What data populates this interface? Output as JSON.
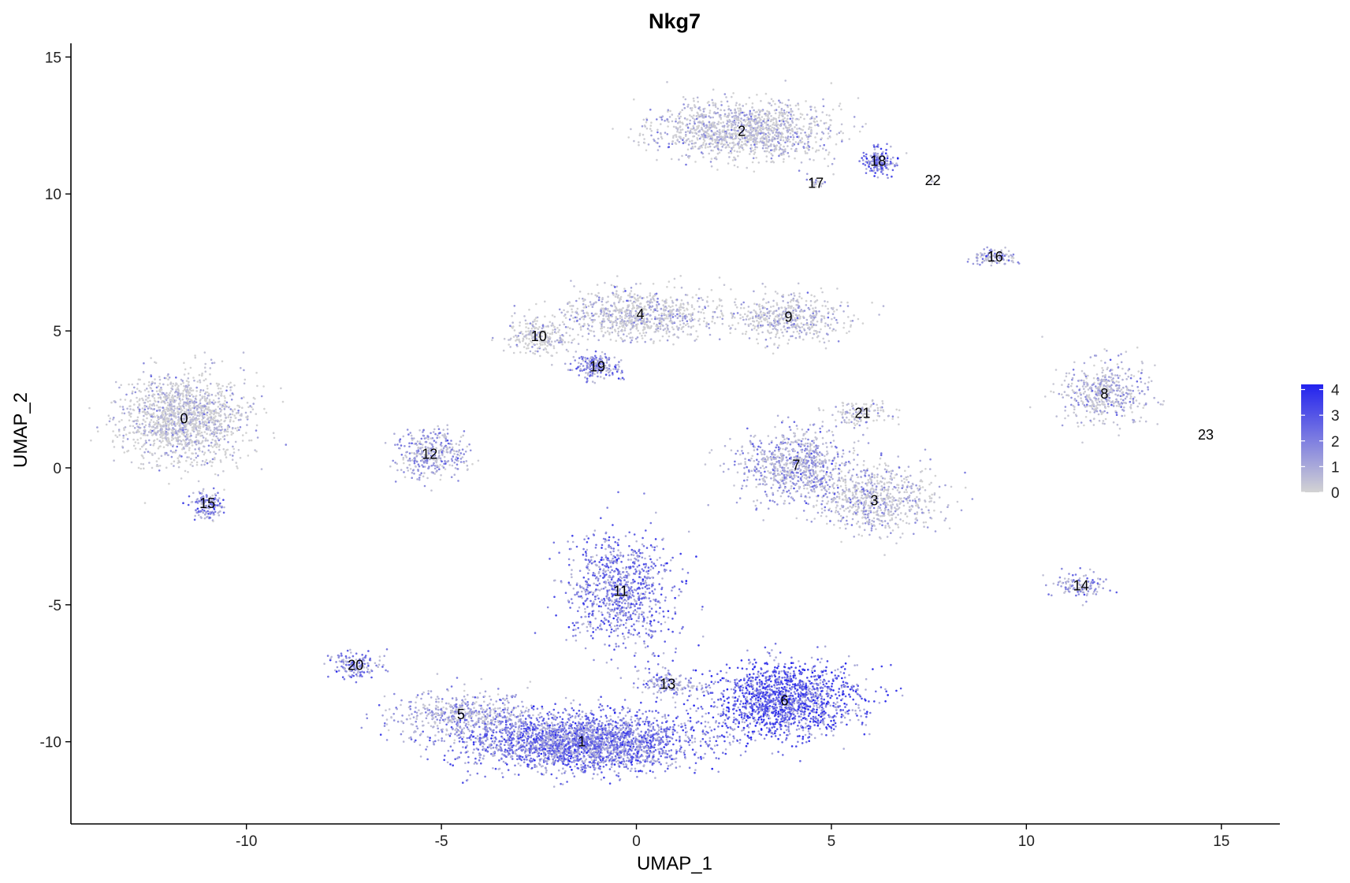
{
  "chart_data": {
    "type": "scatter",
    "title": "Nkg7",
    "xlabel": "UMAP_1",
    "ylabel": "UMAP_2",
    "xlim": [
      -14.5,
      16.5
    ],
    "ylim": [
      -13,
      15.5
    ],
    "xticks": [
      -10,
      -5,
      0,
      5,
      10,
      15
    ],
    "yticks": [
      -10,
      -5,
      0,
      5,
      10,
      15
    ],
    "grid": false,
    "legend": {
      "placement": "right",
      "min": 0,
      "max": 4.2,
      "ticks": [
        0,
        1,
        2,
        3,
        4
      ],
      "low_color": "#d3d3d3",
      "high_color": "#2222ee"
    },
    "clusters": [
      {
        "label": "0",
        "x": -11.6,
        "y": 1.8,
        "sx": 1.05,
        "sy": 1.05,
        "n": 1500,
        "expr": 0.3
      },
      {
        "label": "1",
        "x": -1.4,
        "y": -10.0,
        "sx": 2.0,
        "sy": 0.7,
        "n": 2600,
        "expr": 2.4
      },
      {
        "label": "2",
        "x": 2.7,
        "y": 12.3,
        "sx": 1.5,
        "sy": 0.7,
        "n": 1300,
        "expr": 0.5
      },
      {
        "label": "3",
        "x": 6.1,
        "y": -1.2,
        "sx": 1.1,
        "sy": 0.8,
        "n": 700,
        "expr": 0.6
      },
      {
        "label": "4",
        "x": 0.1,
        "y": 5.6,
        "sx": 1.3,
        "sy": 0.6,
        "n": 800,
        "expr": 0.4
      },
      {
        "label": "5",
        "x": -4.5,
        "y": -9.0,
        "sx": 1.2,
        "sy": 0.55,
        "n": 500,
        "expr": 1.3
      },
      {
        "label": "6",
        "x": 3.8,
        "y": -8.5,
        "sx": 1.2,
        "sy": 0.9,
        "n": 1500,
        "expr": 3.0
      },
      {
        "label": "7",
        "x": 4.1,
        "y": 0.1,
        "sx": 1.0,
        "sy": 0.8,
        "n": 800,
        "expr": 1.2
      },
      {
        "label": "8",
        "x": 12.0,
        "y": 2.7,
        "sx": 0.75,
        "sy": 0.75,
        "n": 500,
        "expr": 0.8
      },
      {
        "label": "9",
        "x": 3.9,
        "y": 5.5,
        "sx": 1.0,
        "sy": 0.55,
        "n": 500,
        "expr": 0.5
      },
      {
        "label": "10",
        "x": -2.5,
        "y": 4.8,
        "sx": 0.55,
        "sy": 0.4,
        "n": 250,
        "expr": 0.3
      },
      {
        "label": "11",
        "x": -0.4,
        "y": -4.5,
        "sx": 0.9,
        "sy": 1.3,
        "n": 900,
        "expr": 2.3
      },
      {
        "label": "12",
        "x": -5.3,
        "y": 0.5,
        "sx": 0.6,
        "sy": 0.6,
        "n": 350,
        "expr": 1.2
      },
      {
        "label": "13",
        "x": 0.8,
        "y": -7.9,
        "sx": 0.5,
        "sy": 0.3,
        "n": 150,
        "expr": 1.4
      },
      {
        "label": "14",
        "x": 11.4,
        "y": -4.3,
        "sx": 0.5,
        "sy": 0.3,
        "n": 120,
        "expr": 1.5
      },
      {
        "label": "15",
        "x": -11.0,
        "y": -1.3,
        "sx": 0.3,
        "sy": 0.4,
        "n": 150,
        "expr": 2.0
      },
      {
        "label": "16",
        "x": 9.2,
        "y": 7.7,
        "sx": 0.4,
        "sy": 0.2,
        "n": 110,
        "expr": 1.0
      },
      {
        "label": "17",
        "x": 4.6,
        "y": 10.4,
        "sx": 0.12,
        "sy": 0.12,
        "n": 25,
        "expr": 0.5
      },
      {
        "label": "18",
        "x": 6.2,
        "y": 11.2,
        "sx": 0.3,
        "sy": 0.35,
        "n": 150,
        "expr": 2.3
      },
      {
        "label": "19",
        "x": -1.0,
        "y": 3.7,
        "sx": 0.4,
        "sy": 0.3,
        "n": 200,
        "expr": 2.0
      },
      {
        "label": "20",
        "x": -7.2,
        "y": -7.2,
        "sx": 0.45,
        "sy": 0.3,
        "n": 150,
        "expr": 2.0
      },
      {
        "label": "21",
        "x": 5.8,
        "y": 2.0,
        "sx": 0.6,
        "sy": 0.35,
        "n": 130,
        "expr": 0.4
      },
      {
        "label": "22",
        "x": 7.6,
        "y": 10.5,
        "sx": 0.05,
        "sy": 0.05,
        "n": 4,
        "expr": 0.3
      },
      {
        "label": "23",
        "x": 14.6,
        "y": 1.2,
        "sx": 0.02,
        "sy": 0.02,
        "n": 2,
        "expr": 0.2
      }
    ]
  }
}
